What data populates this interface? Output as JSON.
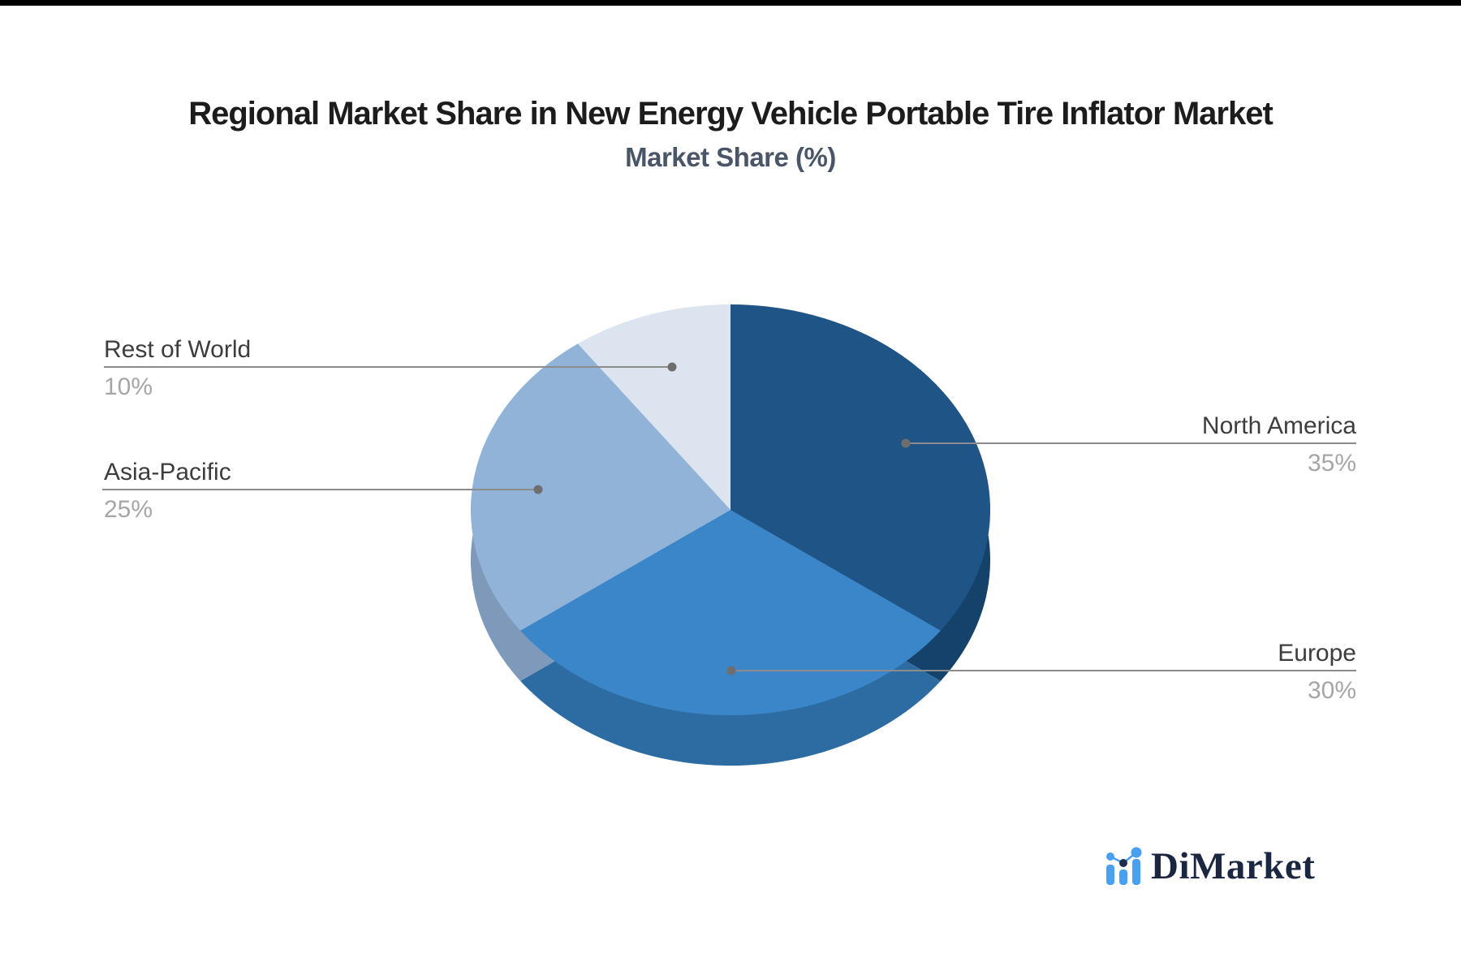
{
  "page": {
    "top_bar_color": "#000000",
    "background_color": "#ffffff"
  },
  "header": {
    "title": "Regional Market Share in New Energy Vehicle Portable Tire Inflator Market",
    "subtitle": "Market Share (%)"
  },
  "chart_data": {
    "type": "pie",
    "title": "Regional Market Share in New Energy Vehicle Portable Tire Inflator Market",
    "subtitle": "Market Share (%)",
    "unit": "%",
    "start_angle_deg": 90,
    "direction": "clockwise",
    "effect": "3d-depth",
    "legend_position": "callout-labels",
    "slices": [
      {
        "label": "North America",
        "value": 35,
        "display": "35%",
        "color": "#1e5586",
        "depth_color": "#15426b"
      },
      {
        "label": "Europe",
        "value": 30,
        "display": "30%",
        "color": "#3b86c8",
        "depth_color": "#2c6ca3"
      },
      {
        "label": "Asia-Pacific",
        "value": 25,
        "display": "25%",
        "color": "#92b3d8",
        "depth_color": "#7e99ba"
      },
      {
        "label": "Rest of World",
        "value": 10,
        "display": "10%",
        "color": "#dce4ef",
        "depth_color": "#b8c3d6"
      }
    ],
    "label_color": "#3d3d3d",
    "value_color": "#a6a6a6",
    "leader_line_color": "#8c8c8c",
    "leader_dot_color": "#6e6e6e"
  },
  "branding": {
    "name": "DiMarket",
    "text_color": "#1b2740",
    "icon_color": "#4aa0f0",
    "icon_dark_color": "#1f2d4f"
  }
}
